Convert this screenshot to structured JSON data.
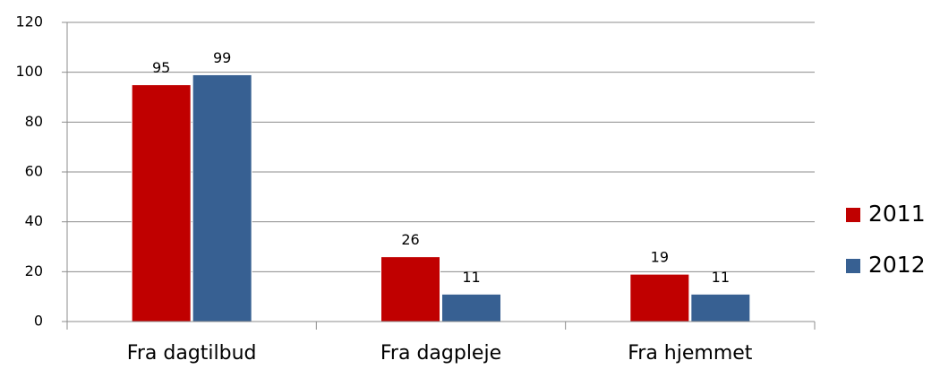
{
  "chart_data": {
    "type": "bar",
    "categories": [
      "Fra dagtilbud",
      "Fra dagpleje",
      "Fra hjemmet"
    ],
    "series": [
      {
        "name": "2011",
        "color": "#c00000",
        "values": [
          95,
          26,
          19
        ]
      },
      {
        "name": "2012",
        "color": "#376092",
        "values": [
          99,
          11,
          11
        ]
      }
    ],
    "ylim": [
      0,
      120
    ],
    "yticks": [
      0,
      20,
      40,
      60,
      80,
      100,
      120
    ],
    "grid": true,
    "legend": "right"
  }
}
